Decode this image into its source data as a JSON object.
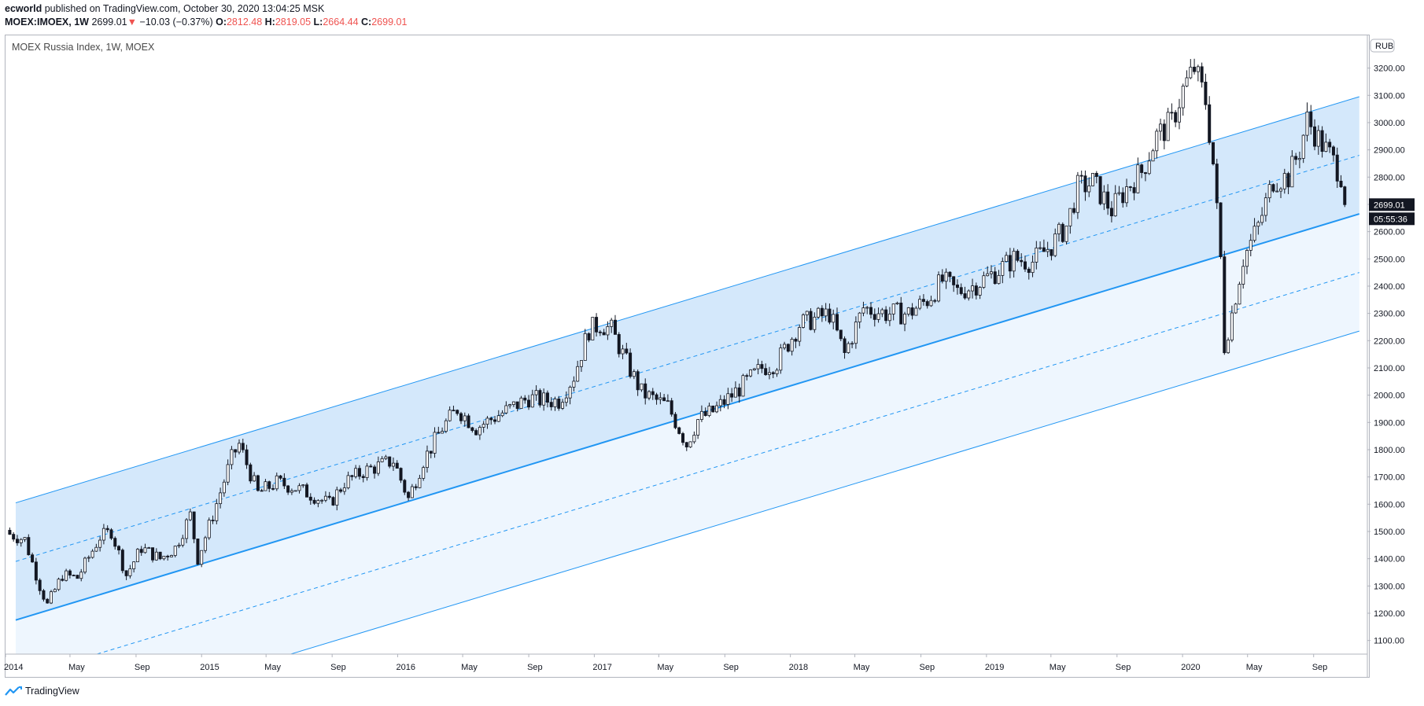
{
  "header": {
    "author": "ecworld",
    "published_text": "published on TradingView.com, October 30, 2020 13:04:25 MSK",
    "symbol": "MOEX:IMOEX, 1W",
    "last": "2699.01",
    "change_icon": "down-triangle-icon",
    "change": "−10.03 (−0.37%)",
    "o_label": "O:",
    "o_value": "2812.48",
    "h_label": "H:",
    "h_value": "2819.05",
    "l_label": "L:",
    "l_value": "2664.44",
    "c_label": "C:",
    "c_value": "2699.01"
  },
  "footer": {
    "brand": "TradingView",
    "logo_icon": "tradingview-logo-icon"
  },
  "colors": {
    "channel_line": "#2196f3",
    "channel_fill_upper": "#cfe6fb",
    "channel_fill_lower": "#eef6fe",
    "candle": "#131722",
    "price_label_bg": "#131722",
    "price_label_text": "#ffffff"
  },
  "chart_data": {
    "type": "candlestick",
    "title": "MOEX Russia Index, 1W, MOEX",
    "currency_badge": "RUB",
    "ylim": [
      1050,
      3320
    ],
    "y_ticks": [
      1100,
      1200,
      1300,
      1400,
      1500,
      1600,
      1700,
      1800,
      1900,
      2000,
      2100,
      2200,
      2300,
      2400,
      2500,
      2600,
      2700,
      2800,
      2900,
      3000,
      3100,
      3200
    ],
    "y_tick_labels": [
      "1100.00",
      "1200.00",
      "1300.00",
      "1400.00",
      "1500.00",
      "1600.00",
      "1700.00",
      "1800.00",
      "1900.00",
      "2000.00",
      "2100.00",
      "2200.00",
      "2300.00",
      "2400.00",
      "2500.00",
      "2600.00",
      "2700.00",
      "2800.00",
      "2900.00",
      "3000.00",
      "3100.00",
      "3200.00"
    ],
    "x_range": [
      "2014-01-01",
      "2020-12-10"
    ],
    "x_ticks": [
      {
        "date": "2014-01-01",
        "label": "2014"
      },
      {
        "date": "2014-05-01",
        "label": "May"
      },
      {
        "date": "2014-09-01",
        "label": "Sep"
      },
      {
        "date": "2015-01-01",
        "label": "2015"
      },
      {
        "date": "2015-05-01",
        "label": "May"
      },
      {
        "date": "2015-09-01",
        "label": "Sep"
      },
      {
        "date": "2016-01-01",
        "label": "2016"
      },
      {
        "date": "2016-05-01",
        "label": "May"
      },
      {
        "date": "2016-09-01",
        "label": "Sep"
      },
      {
        "date": "2017-01-01",
        "label": "2017"
      },
      {
        "date": "2017-05-01",
        "label": "May"
      },
      {
        "date": "2017-09-01",
        "label": "Sep"
      },
      {
        "date": "2018-01-01",
        "label": "2018"
      },
      {
        "date": "2018-05-01",
        "label": "May"
      },
      {
        "date": "2018-09-01",
        "label": "Sep"
      },
      {
        "date": "2019-01-01",
        "label": "2019"
      },
      {
        "date": "2019-05-01",
        "label": "May"
      },
      {
        "date": "2019-09-01",
        "label": "Sep"
      },
      {
        "date": "2020-01-01",
        "label": "2020"
      },
      {
        "date": "2020-05-01",
        "label": "May"
      },
      {
        "date": "2020-09-01",
        "label": "Sep"
      }
    ],
    "last_price_label": "2699.01",
    "countdown_label": "05:55:36",
    "last_price": 2699.01,
    "channel": {
      "start_date": "2014-01-20",
      "end_date": "2020-11-25",
      "upper": [
        1605,
        3095
      ],
      "upper_mid": [
        1390,
        2880
      ],
      "center": [
        1175,
        2665
      ],
      "lower_mid": [
        960,
        2450
      ],
      "lower": [
        745,
        2235
      ]
    },
    "price_path": [
      [
        "2014-01-06",
        1490
      ],
      [
        "2014-02-03",
        1470
      ],
      [
        "2014-03-03",
        1300
      ],
      [
        "2014-03-17",
        1230
      ],
      [
        "2014-04-14",
        1340
      ],
      [
        "2014-05-12",
        1330
      ],
      [
        "2014-06-23",
        1480
      ],
      [
        "2014-07-14",
        1500
      ],
      [
        "2014-08-11",
        1340
      ],
      [
        "2014-09-08",
        1440
      ],
      [
        "2014-10-13",
        1400
      ],
      [
        "2014-11-10",
        1440
      ],
      [
        "2014-12-08",
        1560
      ],
      [
        "2014-12-22",
        1400
      ],
      [
        "2015-01-19",
        1560
      ],
      [
        "2015-02-23",
        1770
      ],
      [
        "2015-03-09",
        1820
      ],
      [
        "2015-04-13",
        1640
      ],
      [
        "2015-05-18",
        1680
      ],
      [
        "2015-06-22",
        1660
      ],
      [
        "2015-07-27",
        1630
      ],
      [
        "2015-08-24",
        1600
      ],
      [
        "2015-09-21",
        1680
      ],
      [
        "2015-10-26",
        1720
      ],
      [
        "2015-11-23",
        1740
      ],
      [
        "2015-12-21",
        1760
      ],
      [
        "2016-01-18",
        1620
      ],
      [
        "2016-02-15",
        1760
      ],
      [
        "2016-03-21",
        1880
      ],
      [
        "2016-04-18",
        1950
      ],
      [
        "2016-05-23",
        1880
      ],
      [
        "2016-06-27",
        1920
      ],
      [
        "2016-07-25",
        1950
      ],
      [
        "2016-08-29",
        1990
      ],
      [
        "2016-09-26",
        1980
      ],
      [
        "2016-10-24",
        1980
      ],
      [
        "2016-11-21",
        2070
      ],
      [
        "2016-12-19",
        2240
      ],
      [
        "2017-01-09",
        2260
      ],
      [
        "2017-01-30",
        2240
      ],
      [
        "2017-02-27",
        2120
      ],
      [
        "2017-03-27",
        2010
      ],
      [
        "2017-04-24",
        1980
      ],
      [
        "2017-05-15",
        1960
      ],
      [
        "2017-06-19",
        1820
      ],
      [
        "2017-07-10",
        1910
      ],
      [
        "2017-08-07",
        1940
      ],
      [
        "2017-09-11",
        2000
      ],
      [
        "2017-10-09",
        2050
      ],
      [
        "2017-11-06",
        2100
      ],
      [
        "2017-12-04",
        2120
      ],
      [
        "2018-01-15",
        2260
      ],
      [
        "2018-02-12",
        2280
      ],
      [
        "2018-03-12",
        2300
      ],
      [
        "2018-04-09",
        2150
      ],
      [
        "2018-05-14",
        2320
      ],
      [
        "2018-06-25",
        2300
      ],
      [
        "2018-08-06",
        2300
      ],
      [
        "2018-09-10",
        2350
      ],
      [
        "2018-10-08",
        2420
      ],
      [
        "2018-11-05",
        2380
      ],
      [
        "2018-12-03",
        2400
      ],
      [
        "2019-01-14",
        2450
      ],
      [
        "2019-02-18",
        2500
      ],
      [
        "2019-03-25",
        2490
      ],
      [
        "2019-04-29",
        2550
      ],
      [
        "2019-05-27",
        2620
      ],
      [
        "2019-06-17",
        2760
      ],
      [
        "2019-07-15",
        2780
      ],
      [
        "2019-08-19",
        2680
      ],
      [
        "2019-09-16",
        2760
      ],
      [
        "2019-10-14",
        2820
      ],
      [
        "2019-11-11",
        2950
      ],
      [
        "2019-12-09",
        3000
      ],
      [
        "2019-12-30",
        3120
      ],
      [
        "2020-01-20",
        3200
      ],
      [
        "2020-02-10",
        3080
      ],
      [
        "2020-02-24",
        2850
      ],
      [
        "2020-03-09",
        2500
      ],
      [
        "2020-03-16",
        2180
      ],
      [
        "2020-03-30",
        2300
      ],
      [
        "2020-04-20",
        2500
      ],
      [
        "2020-05-18",
        2620
      ],
      [
        "2020-06-15",
        2790
      ],
      [
        "2020-07-13",
        2800
      ],
      [
        "2020-08-03",
        2900
      ],
      [
        "2020-08-17",
        3010
      ],
      [
        "2020-09-07",
        2940
      ],
      [
        "2020-09-28",
        2880
      ],
      [
        "2020-10-19",
        2810
      ],
      [
        "2020-10-26",
        2699
      ]
    ]
  }
}
